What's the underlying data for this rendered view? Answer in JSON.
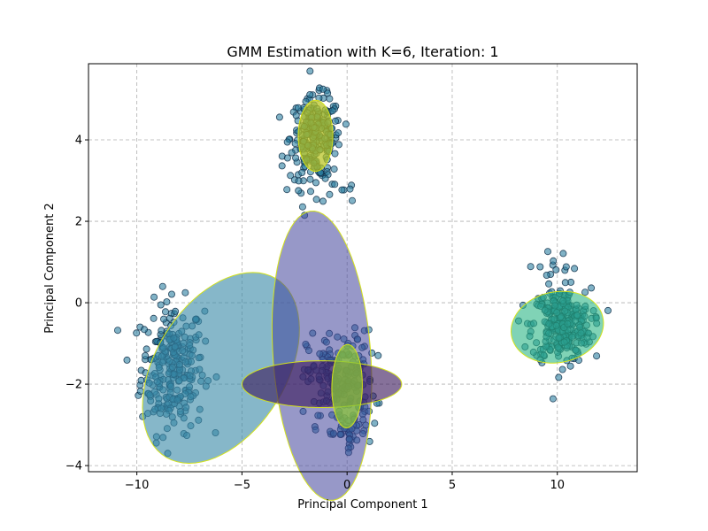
{
  "chart_data": {
    "type": "scatter",
    "title": "GMM Estimation with K=6, Iteration: 1",
    "xlabel": "Principal Component 1",
    "ylabel": "Principal Component 2",
    "xlim": [
      -12.3,
      13.8
    ],
    "ylim": [
      -4.15,
      5.87
    ],
    "xticks": [
      -10,
      -5,
      0,
      5,
      10
    ],
    "yticks": [
      -4,
      -2,
      0,
      2,
      4
    ],
    "grid": true,
    "point_style": {
      "fill": "#2c7fa0",
      "edge": "#0d2c45"
    },
    "clusters": [
      {
        "center": [
          -8.3,
          -1.6
        ],
        "std": [
          0.75,
          0.8
        ],
        "n": 260
      },
      {
        "center": [
          -1.5,
          4.05
        ],
        "std": [
          0.6,
          0.5
        ],
        "n": 240
      },
      {
        "center": [
          10.2,
          -0.55
        ],
        "std": [
          0.7,
          0.45
        ],
        "n": 280
      },
      {
        "center": [
          -0.3,
          -1.9
        ],
        "std": [
          0.8,
          0.6
        ],
        "n": 180
      },
      {
        "center": [
          0.0,
          -3.2
        ],
        "std": [
          0.5,
          0.2
        ],
        "n": 35
      },
      {
        "center": [
          10.1,
          0.9
        ],
        "std": [
          0.8,
          0.2
        ],
        "n": 14
      },
      {
        "center": [
          -1.5,
          2.8
        ],
        "std": [
          1.0,
          0.25
        ],
        "n": 18
      }
    ],
    "components": [
      {
        "center": [
          -6.0,
          -1.6
        ],
        "width": 7.8,
        "height": 4.1,
        "angle": 20,
        "color": "#3b8aa8",
        "alpha": 0.62
      },
      {
        "center": [
          -1.2,
          -1.3
        ],
        "width": 7.2,
        "height": 4.6,
        "angle": -78,
        "color": "#42449a",
        "alpha": 0.55
      },
      {
        "center": [
          -1.2,
          -2.0
        ],
        "width": 7.6,
        "height": 1.15,
        "angle": 0,
        "color": "#3c1a5c",
        "alpha": 0.62
      },
      {
        "center": [
          10.0,
          -0.6
        ],
        "width": 4.4,
        "height": 1.75,
        "angle": 3,
        "color": "#2bb585",
        "alpha": 0.6
      },
      {
        "center": [
          -1.5,
          4.1
        ],
        "width": 1.75,
        "height": 1.65,
        "angle": 88,
        "color": "#b8c420",
        "alpha": 0.72
      },
      {
        "center": [
          0.0,
          -2.05
        ],
        "width": 2.05,
        "height": 1.45,
        "angle": 87,
        "color": "#8ac43a",
        "alpha": 0.75
      }
    ],
    "ellipse_edge": "#d4e21a"
  }
}
